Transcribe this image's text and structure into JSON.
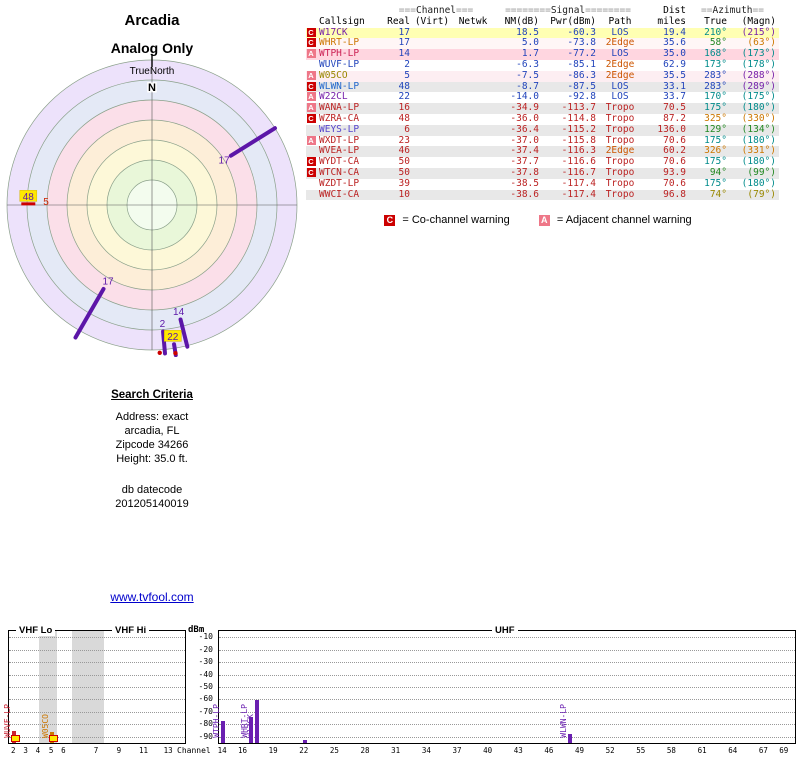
{
  "header": {
    "title": "Arcadia",
    "subtitle": "Analog Only"
  },
  "radar": {
    "north_label": "TrueNorth",
    "compass_n": "N",
    "ring_colors": [
      "#ede2fb",
      "#e4e9f6",
      "#fbdfe9",
      "#fdeed8",
      "#fdf8d8",
      "#e9f7d9",
      "#f3fcee"
    ],
    "markers": [
      {
        "label": "17",
        "angle": 58,
        "spoke": [
          145,
          93
        ],
        "label_r": 85,
        "color": "#5c16a8",
        "text": "#5c16a8"
      },
      {
        "label": "17",
        "angle": 210,
        "spoke": [
          153,
          97
        ],
        "label_r": 88,
        "color": "#5c16a8",
        "text": "#5c16a8"
      },
      {
        "label": "14",
        "angle": 166,
        "spoke": [
          146,
          118
        ],
        "label_r": 110,
        "color": "#5c16a8",
        "text": "#5c16a8"
      },
      {
        "label": "2",
        "angle": 175,
        "spoke": [
          149,
          127
        ],
        "label_r": 119,
        "color": "#5c16a8",
        "text": "#5c16a8"
      },
      {
        "label": "22",
        "angle": 171,
        "spoke": [
          152,
          141
        ],
        "label_r": 133,
        "color": "#5c16a8",
        "text": "#5c16a8",
        "box": "#ffe800"
      },
      {
        "label": "48",
        "angle": 274,
        "label_r": 124,
        "text": "#5c16a8",
        "box": "#ffe800",
        "bar": "#cc0000"
      },
      {
        "label": "5",
        "angle": 272,
        "label_r": 106,
        "text": "#cc2200"
      }
    ],
    "edge_dots": [
      {
        "angle": 177,
        "r": 148
      },
      {
        "angle": 171,
        "r": 150
      }
    ]
  },
  "search": {
    "heading": "Search Criteria",
    "lines": [
      "Address: exact",
      "arcadia, FL",
      "Zipcode 34266",
      "Height: 35.0 ft."
    ],
    "db_label": "db datecode",
    "db_code": "201205140019"
  },
  "link_text": "www.tvfool.com",
  "table": {
    "group": {
      "channel_eq": "===",
      "channel": "Channel",
      "signal_eq": "========",
      "signal": "Signal",
      "dist": "Dist",
      "azimuth_eq": "==",
      "azimuth": "Azimuth"
    },
    "cols": {
      "callsign": "Callsign",
      "real": "Real",
      "virt": "(Virt)",
      "netwk": "Netwk",
      "nm": "NM(dB)",
      "pwr": "Pwr(dBm)",
      "path": "Path",
      "miles": "miles",
      "true": "True",
      "magn": "(Magn)"
    },
    "warning_colors": {
      "C": "#cc0000",
      "A": "#ee7788"
    },
    "rows": [
      {
        "warn": "C",
        "callsign": "W17CK",
        "cs_color": "#7722aa",
        "real": "17",
        "virt": "",
        "netwk": "",
        "nm": "18.5",
        "pwr": "-60.3",
        "path": "LOS",
        "path_color": "#2244bb",
        "num_color": "#2244bb",
        "miles": "19.4",
        "true": "210°",
        "true_color": "#008b8b",
        "magn": "(215°)",
        "magn_color": "#7722aa",
        "bg": "#ffffb3"
      },
      {
        "warn": "C",
        "callsign": "WHRT-LP",
        "cs_color": "#cc7700",
        "real": "17",
        "virt": "",
        "netwk": "",
        "nm": "5.0",
        "pwr": "-73.8",
        "path": "2Edge",
        "path_color": "#cc5500",
        "num_color": "#2244bb",
        "miles": "35.6",
        "true": "58°",
        "true_color": "#228822",
        "magn": "(63°)",
        "magn_color": "#cc7700",
        "bg": "#fff6f6"
      },
      {
        "warn": "A",
        "callsign": "WTPH-LP",
        "cs_color": "#cc2255",
        "real": "14",
        "virt": "",
        "netwk": "",
        "nm": "1.7",
        "pwr": "-77.2",
        "path": "LOS",
        "path_color": "#2244bb",
        "num_color": "#2244bb",
        "miles": "35.0",
        "true": "168°",
        "true_color": "#008b8b",
        "magn": "(173°)",
        "magn_color": "#008b8b",
        "bg": "#ffd6e0"
      },
      {
        "warn": "",
        "callsign": "WUVF-LP",
        "cs_color": "#2244bb",
        "real": "2",
        "virt": "",
        "netwk": "",
        "nm": "-6.3",
        "pwr": "-85.1",
        "path": "2Edge",
        "path_color": "#cc5500",
        "num_color": "#2244bb",
        "miles": "62.9",
        "true": "173°",
        "true_color": "#008b8b",
        "magn": "(178°)",
        "magn_color": "#008b8b",
        "bg": "#ffffff"
      },
      {
        "warn": "A",
        "callsign": "W05CO",
        "cs_color": "#998800",
        "real": "5",
        "virt": "",
        "netwk": "",
        "nm": "-7.5",
        "pwr": "-86.3",
        "path": "2Edge",
        "path_color": "#cc5500",
        "num_color": "#2244bb",
        "miles": "35.5",
        "true": "283°",
        "true_color": "#2244bb",
        "magn": "(288°)",
        "magn_color": "#7722aa",
        "bg": "#fdeef2"
      },
      {
        "warn": "C",
        "callsign": "WLWN-LP",
        "cs_color": "#2266cc",
        "real": "48",
        "virt": "",
        "netwk": "",
        "nm": "-8.7",
        "pwr": "-87.5",
        "path": "LOS",
        "path_color": "#2244bb",
        "num_color": "#2244bb",
        "miles": "33.1",
        "true": "283°",
        "true_color": "#2244bb",
        "magn": "(289°)",
        "magn_color": "#7722aa",
        "bg": "#e8e8e8"
      },
      {
        "warn": "A",
        "callsign": "W22CL",
        "cs_color": "#7722aa",
        "real": "22",
        "virt": "",
        "netwk": "",
        "nm": "-14.0",
        "pwr": "-92.8",
        "path": "LOS",
        "path_color": "#2244bb",
        "num_color": "#2244bb",
        "miles": "33.7",
        "true": "170°",
        "true_color": "#008b8b",
        "magn": "(175°)",
        "magn_color": "#008b8b",
        "bg": "#ffffff"
      },
      {
        "warn": "A",
        "callsign": "WANA-LP",
        "cs_color": "#bb2222",
        "real": "16",
        "virt": "",
        "netwk": "",
        "nm": "-34.9",
        "pwr": "-113.7",
        "path": "Tropo",
        "path_color": "#bb2222",
        "num_color": "#bb2222",
        "miles": "70.5",
        "true": "175°",
        "true_color": "#008b8b",
        "magn": "(180°)",
        "magn_color": "#008b8b",
        "bg": "#e8e8e8"
      },
      {
        "warn": "C",
        "callsign": "WZRA-CA",
        "cs_color": "#bb2222",
        "real": "48",
        "virt": "",
        "netwk": "",
        "nm": "-36.0",
        "pwr": "-114.8",
        "path": "Tropo",
        "path_color": "#bb2222",
        "num_color": "#bb2222",
        "miles": "87.2",
        "true": "325°",
        "true_color": "#cc7700",
        "magn": "(330°)",
        "magn_color": "#cc7700",
        "bg": "#ffffff"
      },
      {
        "warn": "",
        "callsign": "WEYS-LP",
        "cs_color": "#5544cc",
        "real": "6",
        "virt": "",
        "netwk": "",
        "nm": "-36.4",
        "pwr": "-115.2",
        "path": "Tropo",
        "path_color": "#bb2222",
        "num_color": "#bb2222",
        "miles": "136.0",
        "true": "129°",
        "true_color": "#228822",
        "magn": "(134°)",
        "magn_color": "#228822",
        "bg": "#e8e8e8"
      },
      {
        "warn": "A",
        "callsign": "WXDT-LP",
        "cs_color": "#bb2222",
        "real": "23",
        "virt": "",
        "netwk": "",
        "nm": "-37.0",
        "pwr": "-115.8",
        "path": "Tropo",
        "path_color": "#bb2222",
        "num_color": "#bb2222",
        "miles": "70.6",
        "true": "175°",
        "true_color": "#008b8b",
        "magn": "(180°)",
        "magn_color": "#008b8b",
        "bg": "#ffffff"
      },
      {
        "warn": "",
        "callsign": "WVEA-LP",
        "cs_color": "#bb2222",
        "real": "46",
        "virt": "",
        "netwk": "",
        "nm": "-37.4",
        "pwr": "-116.3",
        "path": "2Edge",
        "path_color": "#cc5500",
        "num_color": "#bb2222",
        "miles": "60.2",
        "true": "326°",
        "true_color": "#cc7700",
        "magn": "(331°)",
        "magn_color": "#cc7700",
        "bg": "#e8e8e8"
      },
      {
        "warn": "C",
        "callsign": "WYDT-CA",
        "cs_color": "#bb2222",
        "real": "50",
        "virt": "",
        "netwk": "",
        "nm": "-37.7",
        "pwr": "-116.6",
        "path": "Tropo",
        "path_color": "#bb2222",
        "num_color": "#bb2222",
        "miles": "70.6",
        "true": "175°",
        "true_color": "#008b8b",
        "magn": "(180°)",
        "magn_color": "#008b8b",
        "bg": "#ffffff"
      },
      {
        "warn": "C",
        "callsign": "WTCN-CA",
        "cs_color": "#bb2222",
        "real": "50",
        "virt": "",
        "netwk": "",
        "nm": "-37.8",
        "pwr": "-116.7",
        "path": "Tropo",
        "path_color": "#bb2222",
        "num_color": "#bb2222",
        "miles": "93.9",
        "true": "94°",
        "true_color": "#228822",
        "magn": "(99°)",
        "magn_color": "#228822",
        "bg": "#e8e8e8"
      },
      {
        "warn": "",
        "callsign": "WZDT-LP",
        "cs_color": "#bb2222",
        "real": "39",
        "virt": "",
        "netwk": "",
        "nm": "-38.5",
        "pwr": "-117.4",
        "path": "Tropo",
        "path_color": "#bb2222",
        "num_color": "#bb2222",
        "miles": "70.6",
        "true": "175°",
        "true_color": "#008b8b",
        "magn": "(180°)",
        "magn_color": "#008b8b",
        "bg": "#ffffff"
      },
      {
        "warn": "",
        "callsign": "WWCI-CA",
        "cs_color": "#bb2222",
        "real": "10",
        "virt": "",
        "netwk": "",
        "nm": "-38.6",
        "pwr": "-117.4",
        "path": "Tropo",
        "path_color": "#bb2222",
        "num_color": "#bb2222",
        "miles": "96.8",
        "true": "74°",
        "true_color": "#998800",
        "magn": "(79°)",
        "magn_color": "#998800",
        "bg": "#e8e8e8"
      }
    ],
    "legend": [
      {
        "badge": "C",
        "text": "= Co-channel warning"
      },
      {
        "badge": "A",
        "text": "= Adjacent channel warning"
      }
    ]
  },
  "chart_data": {
    "type": "bar",
    "title_vhf_lo": "VHF Lo",
    "title_vhf_hi": "VHF Hi",
    "title_uhf": "UHF",
    "ylabel": "dBm",
    "xlabel": "Channel",
    "ylim": [
      -95,
      -5
    ],
    "yticks": [
      -10,
      -20,
      -30,
      -40,
      -50,
      -60,
      -70,
      -80,
      -90
    ],
    "vhf_ticks": [
      2,
      3,
      4,
      5,
      6,
      7,
      9,
      11,
      13
    ],
    "uhf_ticks": [
      14,
      16,
      19,
      22,
      25,
      28,
      31,
      34,
      37,
      40,
      43,
      46,
      49,
      52,
      55,
      58,
      61,
      64,
      67,
      69
    ],
    "stations": [
      {
        "callsign": "WUVF-LP",
        "channel": 2,
        "dbm": -85.1,
        "color": "#cc2233"
      },
      {
        "callsign": "W05CO",
        "channel": 5,
        "dbm": -86.3,
        "color": "#cc7700"
      },
      {
        "callsign": "WTPH-LP",
        "channel": 14,
        "dbm": -77.2,
        "color": "#6a1fb0"
      },
      {
        "callsign": "WHRT-LP",
        "channel": 17,
        "dbm": -73.8,
        "color": "#6a1fb0",
        "dx": -3
      },
      {
        "callsign": "W17CK",
        "channel": 17,
        "dbm": -60.3,
        "color": "#6a1fb0",
        "dx": 3
      },
      {
        "callsign": "W22CL",
        "channel": 22,
        "dbm": -92.8,
        "color": "#6a1fb0",
        "nolabel": true
      },
      {
        "callsign": "WLWN-LP",
        "channel": 48,
        "dbm": -87.5,
        "color": "#6a1fb0"
      }
    ],
    "base_marks": [
      {
        "channel": 2,
        "fill": "#ffe800",
        "border": "#cc0000"
      },
      {
        "channel": 5,
        "fill": "#ffe800",
        "border": "#cc0000"
      }
    ]
  }
}
